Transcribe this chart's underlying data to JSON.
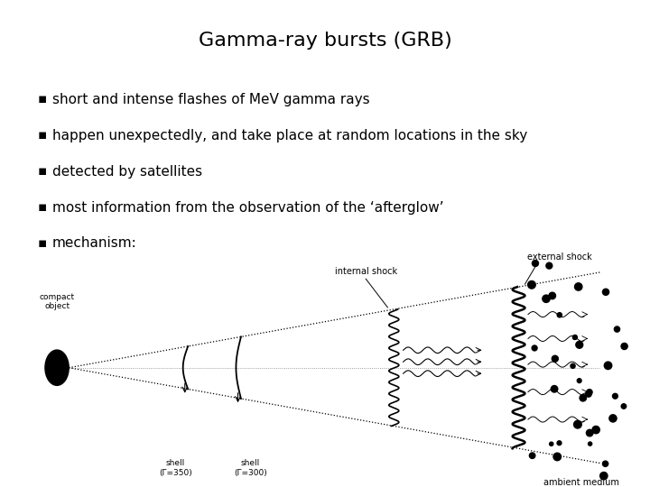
{
  "title": "Gamma-ray bursts (GRB)",
  "title_fontsize": 16,
  "title_font": "sans-serif",
  "bullets": [
    "short and intense flashes of MeV gamma rays",
    "happen unexpectedly, and take place at random locations in the sky",
    "detected by satellites",
    "most information from the observation of the ‘afterglow’",
    "mechanism:"
  ],
  "bullet_fontsize": 11,
  "bullet_font": "sans-serif",
  "background_color": "#ffffff",
  "text_color": "#000000"
}
